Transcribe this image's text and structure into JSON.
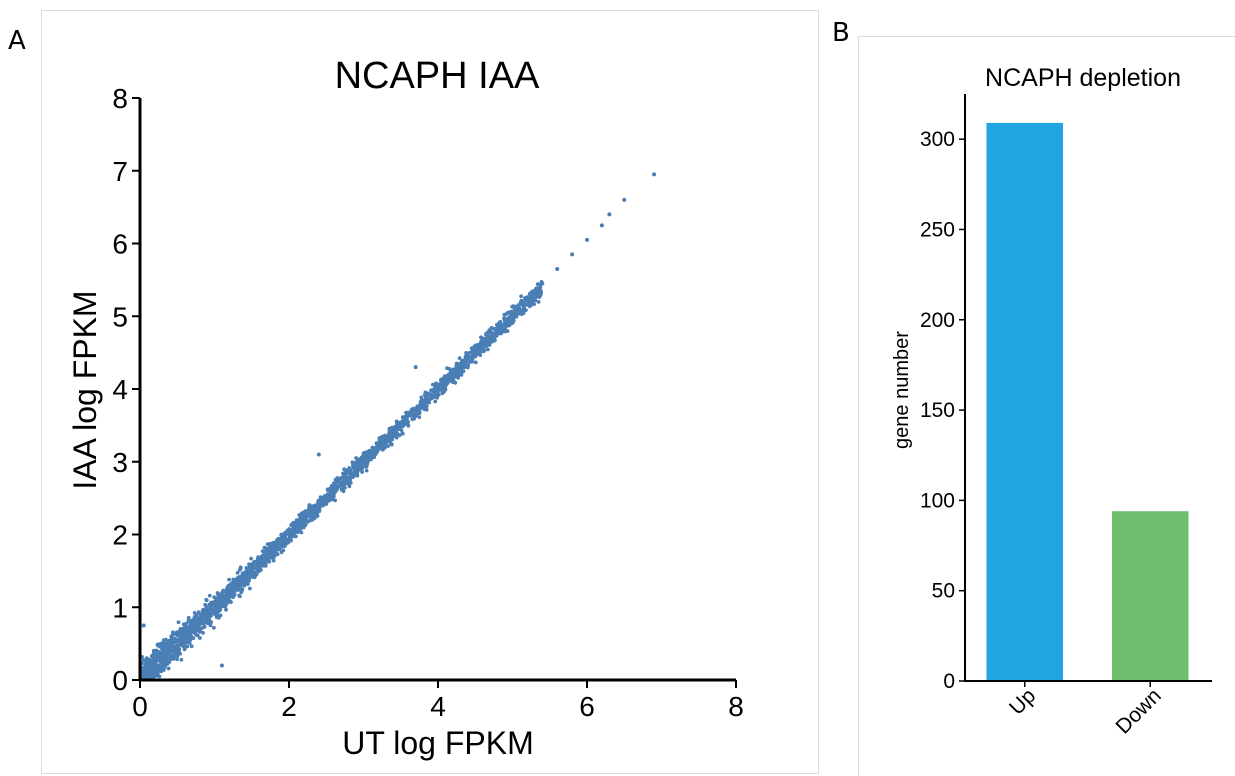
{
  "panels": {
    "a_label": "A",
    "b_label": "B"
  },
  "chart_data": [
    {
      "type": "scatter",
      "title": "NCAPH IAA",
      "xlabel": "UT log FPKM",
      "ylabel": "IAA log FPKM",
      "xlim": [
        0,
        8
      ],
      "ylim": [
        0,
        8
      ],
      "xticks": [
        "0",
        "2",
        "4",
        "6",
        "8"
      ],
      "yticks": [
        "0",
        "1",
        "2",
        "3",
        "4",
        "5",
        "6",
        "7",
        "8"
      ],
      "grid": false,
      "legend": "none",
      "point_color": "#4a7fb5",
      "description_of_distribution": "dense cloud along y = x",
      "points": [
        [
          0.1,
          0.05
        ],
        [
          0.2,
          0.3
        ],
        [
          0.3,
          0.2
        ],
        [
          0.5,
          0.55
        ],
        [
          0.6,
          0.45
        ],
        [
          0.8,
          0.85
        ],
        [
          1.0,
          0.95
        ],
        [
          1.2,
          1.25
        ],
        [
          1.4,
          1.35
        ],
        [
          1.6,
          1.65
        ],
        [
          1.8,
          1.75
        ],
        [
          2.0,
          2.05
        ],
        [
          2.2,
          2.15
        ],
        [
          2.4,
          2.45
        ],
        [
          2.6,
          2.55
        ],
        [
          2.8,
          2.85
        ],
        [
          3.0,
          3.0
        ],
        [
          3.2,
          3.25
        ],
        [
          3.4,
          3.35
        ],
        [
          3.6,
          3.65
        ],
        [
          3.8,
          3.8
        ],
        [
          4.0,
          4.05
        ],
        [
          4.2,
          4.2
        ],
        [
          4.4,
          4.45
        ],
        [
          4.6,
          4.6
        ],
        [
          4.8,
          4.85
        ],
        [
          5.0,
          5.0
        ],
        [
          5.2,
          5.25
        ],
        [
          5.4,
          5.45
        ],
        [
          5.6,
          5.65
        ],
        [
          5.8,
          5.85
        ],
        [
          6.0,
          6.05
        ],
        [
          6.2,
          6.25
        ],
        [
          6.3,
          6.4
        ],
        [
          6.5,
          6.6
        ],
        [
          6.9,
          6.95
        ],
        [
          1.1,
          0.2
        ],
        [
          0.05,
          0.75
        ],
        [
          2.4,
          3.1
        ],
        [
          3.7,
          4.3
        ]
      ]
    },
    {
      "type": "bar",
      "title": "NCAPH depletion",
      "xlabel": "",
      "ylabel": "gene number",
      "categories": [
        "Up",
        "Down"
      ],
      "values": [
        309,
        94
      ],
      "colors": [
        "#21a5e0",
        "#6dbf6d"
      ],
      "ylim": [
        0,
        325
      ],
      "yticks": [
        "0",
        "50",
        "100",
        "150",
        "200",
        "250",
        "300"
      ],
      "grid": false,
      "legend": "none"
    }
  ]
}
